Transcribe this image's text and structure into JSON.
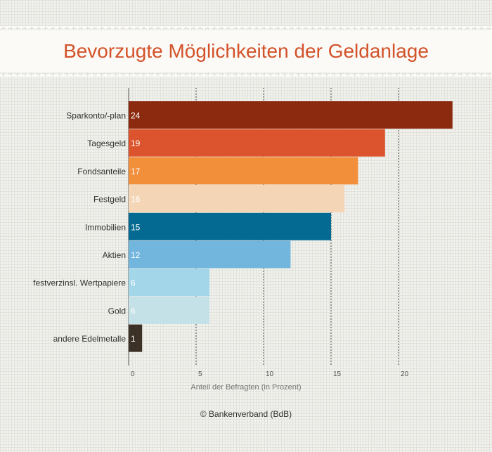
{
  "chart_data": {
    "type": "bar",
    "orientation": "horizontal",
    "title": "Bevorzugte Möglichkeiten der Geldanlage",
    "xlabel": "Anteil der Befragten (in Prozent)",
    "ylabel": "",
    "xlim": [
      0,
      24
    ],
    "x_ticks": [
      0,
      5,
      10,
      15,
      20
    ],
    "grid": "vertical dotted",
    "categories": [
      "Sparkonto/-plan",
      "Tagesgeld",
      "Fondsanteile",
      "Festgeld",
      "Immobilien",
      "Aktien",
      "festverzinsl. Wertpapiere",
      "Gold",
      "andere Edelmetalle"
    ],
    "values": [
      24,
      19,
      17,
      16,
      15,
      12,
      6,
      6,
      1
    ],
    "colors": [
      "#8b2a0f",
      "#db542d",
      "#f28f3a",
      "#f4d6b7",
      "#046a92",
      "#72b5dd",
      "#a4d6e9",
      "#c3e1e6",
      "#3c3127"
    ],
    "label_colors": [
      "#ffffff",
      "#ffffff",
      "#ffffff",
      "#ffffff",
      "#ffffff",
      "#ffffff",
      "#ffffff",
      "#ffffff",
      "#ffffff"
    ],
    "source": "© Bankenverband (BdB)"
  }
}
